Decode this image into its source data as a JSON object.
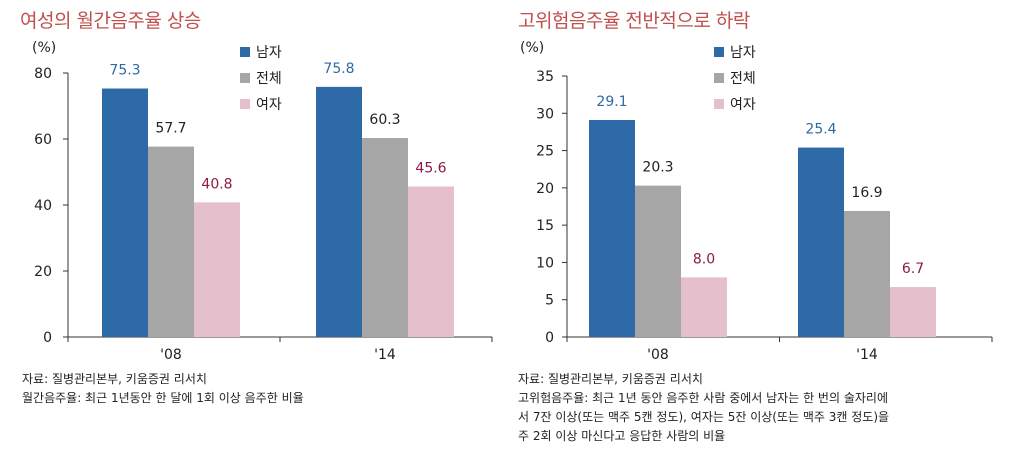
{
  "colors": {
    "male": "#2e6aa8",
    "total": "#a6a6a6",
    "female": "#e6bfcc",
    "label_male": "#2e6aa8",
    "label_total": "#222222",
    "label_female": "#8b1a4a",
    "title": "#c0504d"
  },
  "chart_data": [
    {
      "type": "bar",
      "title": "여성의 월간음주율 상승",
      "unit": "(%)",
      "categories": [
        "'08",
        "'14"
      ],
      "series": [
        {
          "name": "남자",
          "values": [
            75.3,
            75.8
          ]
        },
        {
          "name": "전체",
          "values": [
            57.7,
            60.3
          ]
        },
        {
          "name": "여자",
          "values": [
            40.8,
            45.6
          ]
        }
      ],
      "data_labels": [
        [
          "75.3",
          "75.8"
        ],
        [
          "57.7",
          "60.3"
        ],
        [
          "40.8",
          "45.6"
        ]
      ],
      "ylim": [
        0,
        80
      ],
      "yticks": [
        "0",
        "20",
        "40",
        "60",
        "80"
      ],
      "yticks_values": [
        0,
        20,
        40,
        60,
        80
      ],
      "legend": [
        "남자",
        "전체",
        "여자"
      ],
      "grid": false,
      "legend_position": "top-right",
      "notes": [
        "자료: 질병관리본부, 키움증권 리서치",
        "월간음주율: 최근 1년동안 한 달에 1회 이상 음주한 비율"
      ]
    },
    {
      "type": "bar",
      "title": "고위험음주율 전반적으로 하락",
      "unit": "(%)",
      "categories": [
        "'08",
        "'14"
      ],
      "series": [
        {
          "name": "남자",
          "values": [
            29.1,
            25.4
          ]
        },
        {
          "name": "전체",
          "values": [
            20.3,
            16.9
          ]
        },
        {
          "name": "여자",
          "values": [
            8.0,
            6.7
          ]
        }
      ],
      "data_labels": [
        [
          "29.1",
          "25.4"
        ],
        [
          "20.3",
          "16.9"
        ],
        [
          "8.0",
          "6.7"
        ]
      ],
      "ylim": [
        0,
        35
      ],
      "yticks": [
        "0",
        "5",
        "10",
        "15",
        "20",
        "25",
        "30",
        "35"
      ],
      "yticks_values": [
        0,
        5,
        10,
        15,
        20,
        25,
        30,
        35
      ],
      "legend": [
        "남자",
        "전체",
        "여자"
      ],
      "grid": false,
      "legend_position": "top-right",
      "notes": [
        "자료: 질병관리본부, 키움증권 리서치",
        "고위험음주율: 최근 1년 동안 음주한 사람 중에서 남자는 한 번의 술자리에",
        "서 7잔 이상(또는 맥주 5캔 정도), 여자는 5잔 이상(또는 맥주 3캔 정도)을",
        "주 2회 이상 마신다고 응답한 사람의 비율"
      ]
    }
  ]
}
